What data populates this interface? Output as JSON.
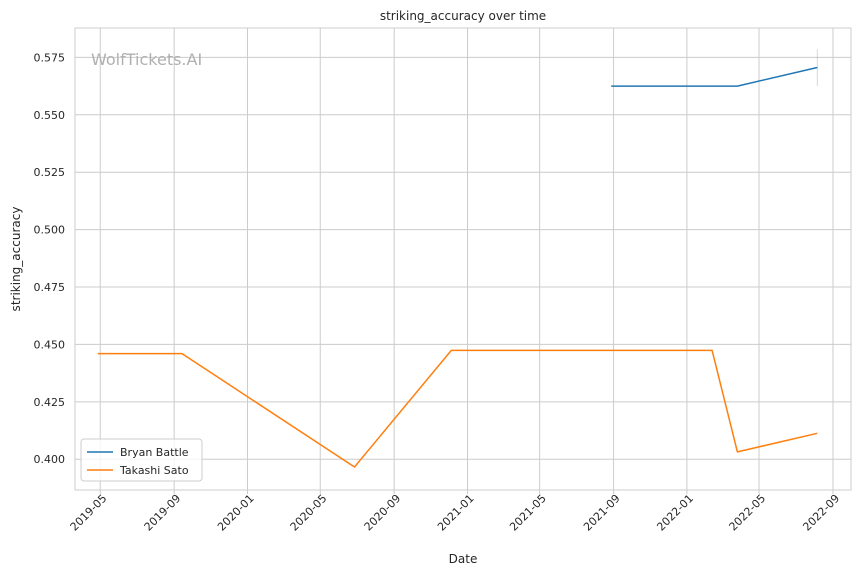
{
  "watermark": "WolfTickets.AI",
  "chart_data": {
    "type": "line",
    "title": "striking_accuracy over time",
    "xlabel": "Date",
    "ylabel": "striking_accuracy",
    "xlim": [
      "2019-03-20",
      "2022-10-01"
    ],
    "ylim": [
      0.3866,
      0.5878
    ],
    "x_ticks": [
      "2019-05",
      "2019-09",
      "2020-01",
      "2020-05",
      "2020-09",
      "2021-01",
      "2021-05",
      "2021-09",
      "2022-01",
      "2022-05",
      "2022-09"
    ],
    "y_ticks": [
      "0.400",
      "0.425",
      "0.450",
      "0.475",
      "0.500",
      "0.525",
      "0.550",
      "0.575"
    ],
    "grid": true,
    "legend_position": "lower-left",
    "series": [
      {
        "name": "Bryan Battle",
        "color": "#1f77b4",
        "points": [
          {
            "x": "2021-08-28",
            "y": 0.5625
          },
          {
            "x": "2022-03-26",
            "y": 0.5625
          },
          {
            "x": "2022-08-06",
            "y": 0.5706
          }
        ],
        "errorbar": {
          "x": "2022-08-06",
          "low": 0.5625,
          "high": 0.5785
        }
      },
      {
        "name": "Takashi Sato",
        "color": "#ff7f0e",
        "points": [
          {
            "x": "2019-04-27",
            "y": 0.446
          },
          {
            "x": "2019-09-14",
            "y": 0.446
          },
          {
            "x": "2020-06-27",
            "y": 0.3966
          },
          {
            "x": "2020-12-05",
            "y": 0.4474
          },
          {
            "x": "2022-02-12",
            "y": 0.4474
          },
          {
            "x": "2022-03-26",
            "y": 0.4032
          },
          {
            "x": "2022-08-06",
            "y": 0.4113
          }
        ]
      }
    ]
  }
}
